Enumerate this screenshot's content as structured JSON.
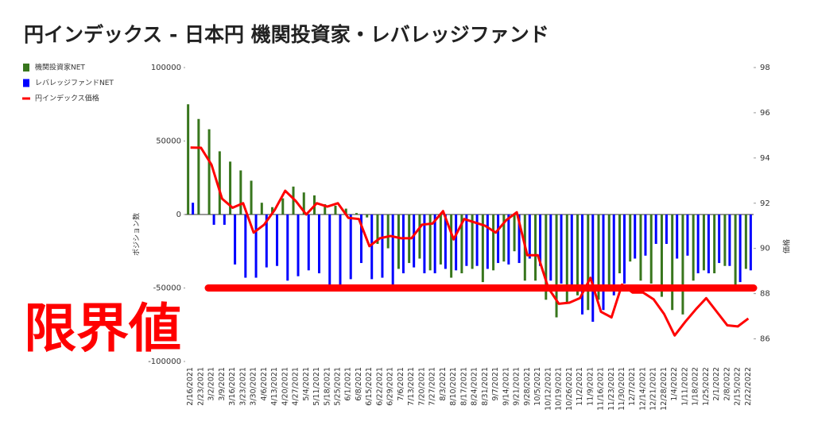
{
  "chart_data": {
    "type": "bar_line",
    "title": "円インデックス - 日本円 機関投資家・レバレッジファンド",
    "y_label": "ポジション数",
    "y2_label": "価格",
    "annotation": "限界値",
    "threshold_line": -50000,
    "threshold_color": "#ff0000",
    "categories": [
      "2/16/2021",
      "2/23/2021",
      "3/2/2021",
      "3/9/2021",
      "3/16/2021",
      "3/23/2021",
      "3/30/2021",
      "4/6/2021",
      "4/13/2021",
      "4/20/2021",
      "4/27/2021",
      "5/4/2021",
      "5/11/2021",
      "5/18/2021",
      "5/25/2021",
      "6/1/2021",
      "6/8/2021",
      "6/15/2021",
      "6/22/2021",
      "6/29/2021",
      "7/6/2021",
      "7/13/2021",
      "7/20/2021",
      "7/27/2021",
      "8/3/2021",
      "8/10/2021",
      "8/17/2021",
      "8/24/2021",
      "8/31/2021",
      "9/7/2021",
      "9/14/2021",
      "9/21/2021",
      "9/28/2021",
      "10/5/2021",
      "10/12/2021",
      "10/19/2021",
      "10/26/2021",
      "11/2/2021",
      "11/9/2021",
      "11/16/2021",
      "11/23/2021",
      "11/30/2021",
      "12/7/2021",
      "12/14/2021",
      "12/21/2021",
      "12/28/2021",
      "1/4/2022",
      "1/11/2022",
      "1/18/2022",
      "1/25/2022",
      "2/1/2022",
      "2/8/2022",
      "2/15/2022",
      "2/22/2022"
    ],
    "series": [
      {
        "name": "機関投資家NET",
        "color": "#38761d",
        "kind": "bar",
        "values": [
          75000,
          65000,
          58000,
          43000,
          36000,
          30000,
          23000,
          8000,
          5000,
          11000,
          19000,
          15000,
          13000,
          7000,
          6000,
          4000,
          1000,
          -2000,
          -20000,
          -23000,
          -37000,
          -33000,
          -30000,
          -38000,
          -34000,
          -43000,
          -40000,
          -37000,
          -46000,
          -38000,
          -32000,
          -25000,
          -45000,
          -45000,
          -58000,
          -70000,
          -60000,
          -55000,
          -65000,
          -58000,
          -48000,
          -40000,
          -32000,
          -45000,
          -47000,
          -56000,
          -65000,
          -68000,
          -45000,
          -38000,
          -40000,
          -35000,
          -48000,
          -37000
        ]
      },
      {
        "name": "レバレッジファンドNET",
        "color": "#0000ff",
        "kind": "bar",
        "values": [
          8000,
          0,
          -7000,
          -7000,
          -34000,
          -43000,
          -43000,
          -36000,
          -35000,
          -45000,
          -42000,
          -38000,
          -40000,
          -48000,
          -48000,
          -44000,
          -33000,
          -44000,
          -43000,
          -48000,
          -40000,
          -36000,
          -40000,
          -40000,
          -37000,
          -38000,
          -35000,
          -35000,
          -37000,
          -33000,
          -34000,
          -33000,
          -30000,
          -35000,
          -45000,
          -47000,
          -48000,
          -68000,
          -73000,
          -65000,
          -55000,
          -47000,
          -30000,
          -28000,
          -20000,
          -20000,
          -30000,
          -28000,
          -40000,
          -40000,
          -33000,
          -35000,
          -46000,
          -38000
        ]
      },
      {
        "name": "円インデックス価格",
        "color": "#ff0000",
        "kind": "line",
        "axis": "y2",
        "values": [
          94.46,
          94.45,
          93.7,
          92.2,
          91.8,
          92.0,
          90.7,
          91.05,
          91.7,
          92.55,
          92.1,
          91.5,
          92.0,
          91.85,
          92.0,
          91.35,
          91.3,
          90.1,
          90.45,
          90.55,
          90.45,
          90.45,
          91.05,
          91.1,
          91.65,
          90.4,
          91.3,
          91.15,
          91.0,
          90.7,
          91.25,
          91.6,
          89.7,
          89.7,
          88.25,
          87.55,
          87.6,
          87.8,
          88.7,
          87.2,
          86.95,
          88.4,
          88.05,
          88.05,
          87.75,
          87.1,
          86.15,
          86.75,
          87.3,
          87.8,
          87.2,
          86.6,
          86.55,
          86.9
        ]
      }
    ],
    "ylim": [
      -100000,
      100000
    ],
    "yticks": [
      -100000,
      -50000,
      0,
      50000,
      100000
    ],
    "y2lim": [
      85,
      98
    ],
    "y2ticks": [
      86,
      88,
      90,
      92,
      94,
      96,
      98
    ]
  }
}
